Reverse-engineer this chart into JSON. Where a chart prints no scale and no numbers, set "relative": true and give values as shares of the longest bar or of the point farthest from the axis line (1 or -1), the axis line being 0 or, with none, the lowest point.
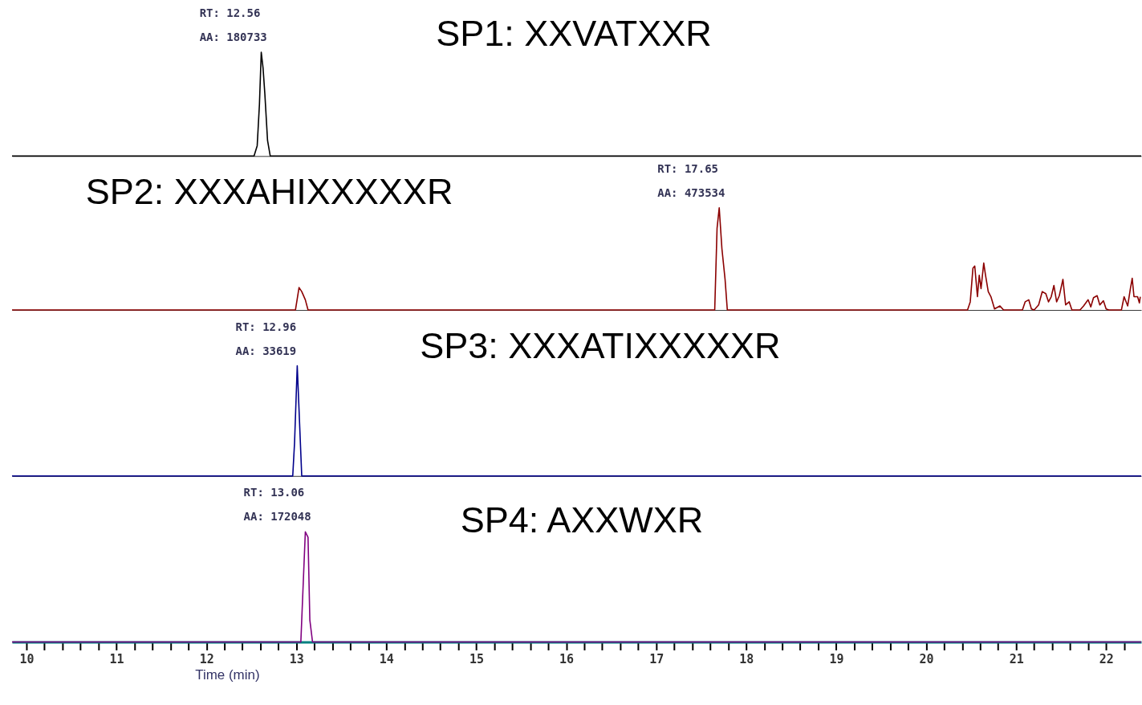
{
  "chart_data": [
    {
      "type": "line",
      "title": "SP1: XXVATXXR",
      "relative": true,
      "tick_labels": false,
      "xlim": [
        9.84,
        22.39
      ],
      "series": [
        {
          "color": "#000000",
          "x": [
            9.84,
            12.53,
            12.565,
            12.59,
            12.61,
            12.63,
            12.65,
            12.68,
            12.71,
            22.39
          ],
          "values": [
            0,
            0,
            0.1,
            0.5,
            1,
            0.85,
            0.6,
            0.15,
            0,
            0
          ]
        }
      ],
      "annotations": [
        {
          "text": "RT: 12.56\nAA: 180733",
          "x": 12.61,
          "y": 1
        }
      ]
    },
    {
      "type": "line",
      "title": "SP2: XXXAHIXXXXXR",
      "relative": true,
      "tick_labels": false,
      "xlim": [
        9.84,
        22.39
      ],
      "series": [
        {
          "color": "#8b0000",
          "x": [
            9.84,
            12.99,
            13.03,
            13.06,
            13.1,
            13.13,
            17.65,
            17.676,
            17.7,
            17.73,
            17.765,
            17.79,
            20.46,
            20.49,
            20.52,
            20.54,
            20.57,
            20.59,
            20.61,
            20.64,
            20.66,
            20.69,
            20.72,
            20.76,
            20.82,
            20.86,
            21.07,
            21.1,
            21.14,
            21.17,
            21.2,
            21.25,
            21.29,
            21.33,
            21.36,
            21.39,
            21.42,
            21.45,
            21.48,
            21.52,
            21.55,
            21.59,
            21.62,
            21.71,
            21.75,
            21.8,
            21.83,
            21.86,
            21.9,
            21.93,
            21.97,
            22.0,
            22.03,
            22.17,
            22.2,
            22.24,
            22.27,
            22.29,
            22.31,
            22.35,
            22.37,
            22.38
          ],
          "values": [
            0,
            0,
            0.22,
            0.18,
            0.1,
            0,
            0,
            0.8,
            1,
            0.6,
            0.3,
            0,
            0,
            0.08,
            0.41,
            0.43,
            0.13,
            0.34,
            0.21,
            0.46,
            0.34,
            0.18,
            0.13,
            0.01,
            0.04,
            0,
            0,
            0.08,
            0.1,
            0.01,
            0,
            0.05,
            0.18,
            0.16,
            0.08,
            0.13,
            0.24,
            0.08,
            0.14,
            0.3,
            0.05,
            0.08,
            0,
            0,
            0.04,
            0.1,
            0.03,
            0.12,
            0.14,
            0.05,
            0.09,
            0.01,
            0,
            0,
            0.13,
            0.04,
            0.21,
            0.31,
            0.13,
            0.13,
            0.07,
            0.13
          ]
        }
      ],
      "annotations": [
        {
          "text": "RT: 17.65\nAA: 473534",
          "x": 17.7,
          "y": 1
        }
      ]
    },
    {
      "type": "line",
      "title": "SP3: XXXATIXXXXXR",
      "relative": true,
      "tick_labels": false,
      "xlim": [
        9.84,
        22.39
      ],
      "series": [
        {
          "color": "#00008b",
          "x": [
            9.84,
            12.96,
            12.98,
            13.01,
            13.04,
            13.06,
            22.39
          ],
          "values": [
            0,
            0,
            0.3,
            1,
            0.4,
            0,
            0
          ]
        }
      ],
      "annotations": [
        {
          "text": "RT: 12.96\nAA: 33619",
          "x": 13.01,
          "y": 1
        }
      ]
    },
    {
      "type": "line",
      "title": "SP4: AXXWXR",
      "relative": true,
      "tick_labels": "x",
      "xlabel": "Time (min)",
      "xlim": [
        9.84,
        22.39
      ],
      "xticks": [
        10,
        {
          "value": 10.2,
          "label": null
        },
        {
          "value": 10.4,
          "label": null
        },
        {
          "value": 10.6,
          "label": null
        },
        {
          "value": 10.8,
          "label": null
        },
        11,
        {
          "value": 11.2,
          "label": null
        },
        {
          "value": 11.4,
          "label": null
        },
        {
          "value": 11.6,
          "label": null
        },
        {
          "value": 11.8,
          "label": null
        },
        12,
        {
          "value": 12.2,
          "label": null
        },
        {
          "value": 12.4,
          "label": null
        },
        {
          "value": 12.6,
          "label": null
        },
        {
          "value": 12.8,
          "label": null
        },
        13,
        {
          "value": 13.2,
          "label": null
        },
        {
          "value": 13.4,
          "label": null
        },
        {
          "value": 13.6,
          "label": null
        },
        {
          "value": 13.8,
          "label": null
        },
        14,
        {
          "value": 14.2,
          "label": null
        },
        {
          "value": 14.4,
          "label": null
        },
        {
          "value": 14.6,
          "label": null
        },
        {
          "value": 14.8,
          "label": null
        },
        15,
        {
          "value": 15.2,
          "label": null
        },
        {
          "value": 15.4,
          "label": null
        },
        {
          "value": 15.6,
          "label": null
        },
        {
          "value": 15.8,
          "label": null
        },
        16,
        {
          "value": 16.2,
          "label": null
        },
        {
          "value": 16.4,
          "label": null
        },
        {
          "value": 16.6,
          "label": null
        },
        {
          "value": 16.8,
          "label": null
        },
        17,
        {
          "value": 17.2,
          "label": null
        },
        {
          "value": 17.4,
          "label": null
        },
        {
          "value": 17.6,
          "label": null
        },
        {
          "value": 17.8,
          "label": null
        },
        18,
        {
          "value": 18.2,
          "label": null
        },
        {
          "value": 18.4,
          "label": null
        },
        {
          "value": 18.6,
          "label": null
        },
        {
          "value": 18.8,
          "label": null
        },
        19,
        {
          "value": 19.2,
          "label": null
        },
        {
          "value": 19.4,
          "label": null
        },
        {
          "value": 19.6,
          "label": null
        },
        {
          "value": 19.8,
          "label": null
        },
        20,
        {
          "value": 20.2,
          "label": null
        },
        {
          "value": 20.4,
          "label": null
        },
        {
          "value": 20.6,
          "label": null
        },
        {
          "value": 20.8,
          "label": null
        },
        21,
        {
          "value": 21.2,
          "label": null
        },
        {
          "value": 21.4,
          "label": null
        },
        {
          "value": 21.6,
          "label": null
        },
        {
          "value": 21.8,
          "label": null
        },
        22,
        {
          "value": 22.2,
          "label": null
        }
      ],
      "series": [
        {
          "color": "#800080",
          "x": [
            9.84,
            13.05,
            13.08,
            13.1,
            13.13,
            13.15,
            13.18,
            22.39
          ],
          "values": [
            0,
            0,
            0.6,
            1,
            0.95,
            0.2,
            0,
            0
          ]
        }
      ],
      "annotations": [
        {
          "text": "RT: 13.06\nAA: 172048",
          "x": 13.1,
          "y": 1
        }
      ]
    }
  ]
}
